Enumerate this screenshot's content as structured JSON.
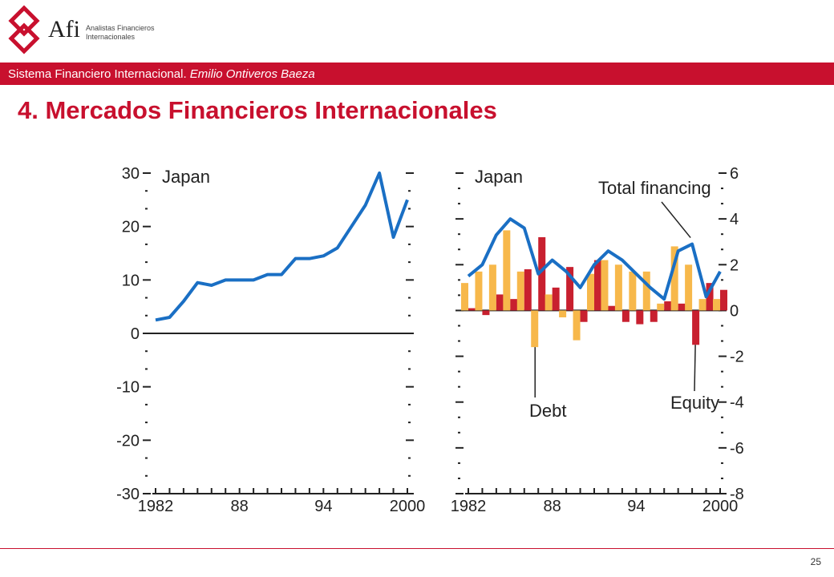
{
  "header": {
    "brand_short": "Afi",
    "brand_line1": "Analistas Financieros",
    "brand_line2": "Internacionales",
    "banner_text": "Sistema Financiero Internacional.",
    "banner_author": "Emilio Ontiveros Baeza",
    "accent_color": "#c8102e"
  },
  "page": {
    "title": "4. Mercados Financieros Internacionales",
    "number": "25"
  },
  "chart_data": [
    {
      "type": "line",
      "title": "Japan",
      "x_ticks": [
        "1982",
        "88",
        "94",
        "2000"
      ],
      "ylim": [
        -30,
        30
      ],
      "y_ticks": [
        "30",
        "20",
        "10",
        "0",
        "-10",
        "-20",
        "-30"
      ],
      "x": [
        1982,
        1983,
        1984,
        1985,
        1986,
        1987,
        1988,
        1989,
        1990,
        1991,
        1992,
        1993,
        1994,
        1995,
        1996,
        1997,
        1998,
        1999,
        2000
      ],
      "values": [
        2.5,
        3,
        6,
        9.5,
        9,
        10,
        10,
        10,
        11,
        11,
        14,
        14,
        14.5,
        16,
        20,
        24,
        30,
        18,
        25
      ],
      "zero_line": true,
      "line_color": "#1a6fc4"
    },
    {
      "type": "bar",
      "title": "Japan",
      "x_ticks": [
        "1982",
        "88",
        "94",
        "2000"
      ],
      "ylim": [
        -8,
        6
      ],
      "y_ticks": [
        "6",
        "4",
        "2",
        "0",
        "-2",
        "-4",
        "-6",
        "-8"
      ],
      "x": [
        1982,
        1983,
        1984,
        1985,
        1986,
        1987,
        1988,
        1989,
        1990,
        1991,
        1992,
        1993,
        1994,
        1995,
        1996,
        1997,
        1998,
        1999,
        2000
      ],
      "series": [
        {
          "values": [
            1.2,
            1.7,
            2.0,
            3.5,
            1.7,
            -1.6,
            0.7,
            -0.3,
            -1.3,
            1.6,
            2.2,
            2.0,
            1.7,
            1.7,
            0.3,
            2.8,
            2.0,
            0.5,
            0.5
          ],
          "color": "#f7b84b"
        },
        {
          "values": [
            0.1,
            -0.2,
            0.7,
            0.5,
            1.8,
            3.2,
            1.0,
            1.9,
            -0.5,
            2.2,
            0.2,
            -0.5,
            -0.6,
            -0.5,
            0.4,
            0.3,
            -1.5,
            1.2,
            0.9
          ],
          "color": "#c8202f"
        },
        {
          "values": [
            1.5,
            2.0,
            3.3,
            4.0,
            3.6,
            1.6,
            2.2,
            1.7,
            1.0,
            2.0,
            2.6,
            2.2,
            1.6,
            1.0,
            0.5,
            2.6,
            2.9,
            0.6,
            1.7
          ],
          "color": "#1a6fc4",
          "type": "line"
        }
      ],
      "annotations": [
        "Total financing",
        "Debt",
        "Equity"
      ]
    }
  ]
}
